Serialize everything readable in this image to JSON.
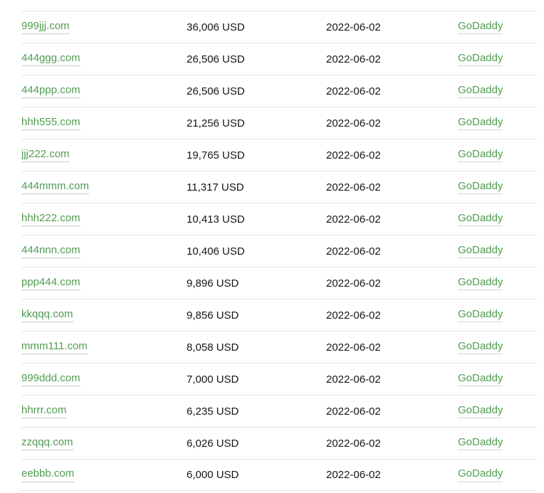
{
  "table": {
    "rows": [
      {
        "domain": "999jjj.com",
        "price": "36,006 USD",
        "date": "2022-06-02",
        "venue": "GoDaddy"
      },
      {
        "domain": "444ggg.com",
        "price": "26,506 USD",
        "date": "2022-06-02",
        "venue": "GoDaddy"
      },
      {
        "domain": "444ppp.com",
        "price": "26,506 USD",
        "date": "2022-06-02",
        "venue": "GoDaddy"
      },
      {
        "domain": "hhh555.com",
        "price": "21,256 USD",
        "date": "2022-06-02",
        "venue": "GoDaddy"
      },
      {
        "domain": "jjj222.com",
        "price": "19,765 USD",
        "date": "2022-06-02",
        "venue": "GoDaddy"
      },
      {
        "domain": "444mmm.com",
        "price": "11,317 USD",
        "date": "2022-06-02",
        "venue": "GoDaddy"
      },
      {
        "domain": "hhh222.com",
        "price": "10,413 USD",
        "date": "2022-06-02",
        "venue": "GoDaddy"
      },
      {
        "domain": "444nnn.com",
        "price": "10,406 USD",
        "date": "2022-06-02",
        "venue": "GoDaddy"
      },
      {
        "domain": "ppp444.com",
        "price": "9,896 USD",
        "date": "2022-06-02",
        "venue": "GoDaddy"
      },
      {
        "domain": "kkqqq.com",
        "price": "9,856 USD",
        "date": "2022-06-02",
        "venue": "GoDaddy"
      },
      {
        "domain": "mmm111.com",
        "price": "8,058 USD",
        "date": "2022-06-02",
        "venue": "GoDaddy"
      },
      {
        "domain": "999ddd.com",
        "price": "7,000 USD",
        "date": "2022-06-02",
        "venue": "GoDaddy"
      },
      {
        "domain": "hhrrr.com",
        "price": "6,235 USD",
        "date": "2022-06-02",
        "venue": "GoDaddy"
      },
      {
        "domain": "zzqqq.com",
        "price": "6,026 USD",
        "date": "2022-06-02",
        "venue": "GoDaddy"
      },
      {
        "domain": "eebbb.com",
        "price": "6,000 USD",
        "date": "2022-06-02",
        "venue": "GoDaddy"
      }
    ]
  },
  "colors": {
    "link_green": "#4f9d52",
    "text_dark": "#161616",
    "divider": "#e4e4e4",
    "domain_underline": "#c9c9c9",
    "venue_underline": "#c7dcc7",
    "background": "#ffffff"
  }
}
